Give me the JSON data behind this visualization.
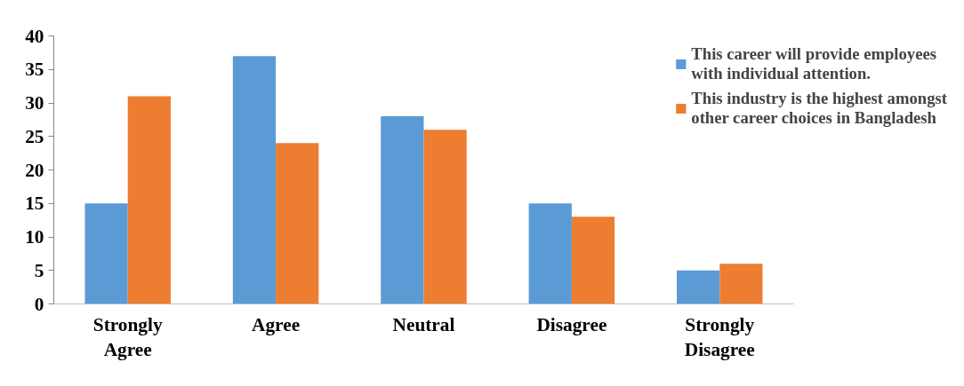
{
  "chart_data": {
    "type": "bar",
    "categories": [
      "Strongly Agree",
      "Agree",
      "Neutral",
      "Disagree",
      "Strongly Disagree"
    ],
    "series": [
      {
        "name": "This career will provide employees with individual attention.",
        "color": "#5b9bd5",
        "values": [
          15,
          37,
          28,
          15,
          5
        ]
      },
      {
        "name": "This industry is the highest amongst other career choices in Bangladesh",
        "color": "#ed7d31",
        "values": [
          31,
          24,
          26,
          13,
          6
        ]
      }
    ],
    "ylim": [
      0,
      40
    ],
    "yticks": [
      0,
      5,
      10,
      15,
      20,
      25,
      30,
      35,
      40
    ],
    "grid": false,
    "legend": "top right"
  }
}
